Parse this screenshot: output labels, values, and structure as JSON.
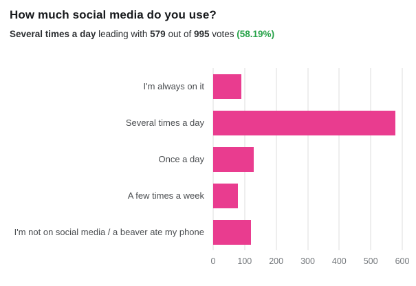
{
  "header": {
    "title": "How much social media do you use?",
    "subtitle": {
      "leader": "Several times a day",
      "mid1": " leading with ",
      "votes": "579",
      "mid2": " out of ",
      "total": "995",
      "mid3": " votes ",
      "pct": "(58.19%)"
    }
  },
  "colors": {
    "bar": "#e93c8f",
    "pct_green": "#26a248"
  },
  "chart_data": {
    "type": "bar",
    "orientation": "horizontal",
    "title": "How much social media do you use?",
    "categories": [
      "I'm always on it",
      "Several times a day",
      "Once a day",
      "A few times a week",
      "I'm not on social media / a beaver ate my phone"
    ],
    "values": [
      90,
      579,
      128,
      78,
      120
    ],
    "total_votes": 995,
    "leading_value": 579,
    "leading_percent": "58.19%",
    "xlim": [
      0,
      600
    ],
    "xticks": [
      0,
      100,
      200,
      300,
      400,
      500,
      600
    ],
    "grid": true,
    "legend": false
  }
}
